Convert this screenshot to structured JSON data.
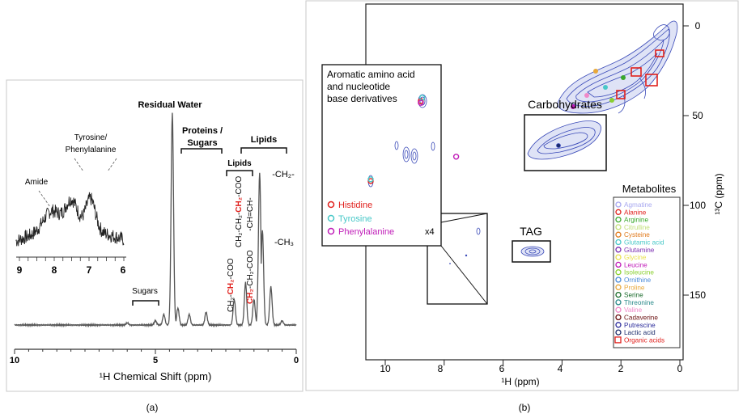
{
  "figure": {
    "panel_a_label": "(a)",
    "panel_b_label": "(b)"
  },
  "panel_a": {
    "xlabel": "¹H Chemical Shift (ppm)",
    "xticks": [
      "10",
      "5",
      "0"
    ],
    "inset_xticks": [
      "9",
      "8",
      "7",
      "6"
    ],
    "annotations": {
      "residual_water": "Residual Water",
      "proteins": "Proteins /",
      "sugars_top": "Sugars",
      "lipids_top": "Lipids",
      "lipids_small": "Lipids",
      "tyrosine": "Tyrosine/",
      "phenylalanine": "Phenylalanine",
      "amide": "Amide",
      "sugars_bottom": "Sugars",
      "ch2": "-CH₂-",
      "ch3": "-CH₃",
      "ch_vinyl": "-CH=CH-",
      "coo_1_black": "CH₂-",
      "coo_1_red": "CH₂",
      "coo_1_end": "-COO",
      "coo_2_black_a": "CH₂-CH₂-",
      "coo_2_red": "CH₂",
      "coo_2_end": "-COO",
      "coo_3_red": "CH₂",
      "coo_3_end": "-CH₂-COO"
    }
  },
  "panel_b": {
    "xlabel": "¹H (ppm)",
    "ylabel": "¹³C (ppm)",
    "xticks": [
      "10",
      "8",
      "6",
      "4",
      "2",
      "0"
    ],
    "yticks": [
      "0",
      "50",
      "100",
      "150"
    ],
    "inset_title": [
      "Aromatic amino acid",
      "and nucleotide",
      "base derivatives"
    ],
    "inset_legend": [
      "Histidine",
      "Tyrosine",
      "Phenylalanine"
    ],
    "inset_scale": "x4",
    "carbohydrates": "Carbohydrates",
    "tag": "TAG",
    "metabolites_title": "Metabolites",
    "metabolites": [
      {
        "name": "Agmatine",
        "color": "#a8a8f0"
      },
      {
        "name": "Alanine",
        "color": "#e0201c"
      },
      {
        "name": "Arginine",
        "color": "#3aa82c"
      },
      {
        "name": "Citrulline",
        "color": "#c2e07a"
      },
      {
        "name": "Cysteine",
        "color": "#e07a1c"
      },
      {
        "name": "Glutamic acid",
        "color": "#48c8c8"
      },
      {
        "name": "Glutamine",
        "color": "#7a2cb0"
      },
      {
        "name": "Glycine",
        "color": "#e8e04a"
      },
      {
        "name": "Leucine",
        "color": "#c01cb8"
      },
      {
        "name": "Isoleucine",
        "color": "#8ad030"
      },
      {
        "name": "Ornithine",
        "color": "#4a8ad8"
      },
      {
        "name": "Proline",
        "color": "#e8a83a"
      },
      {
        "name": "Serine",
        "color": "#1a6a2a"
      },
      {
        "name": "Threonine",
        "color": "#2a8a8a"
      },
      {
        "name": "Valine",
        "color": "#f088c8"
      },
      {
        "name": "Cadaverine",
        "color": "#6a1010"
      },
      {
        "name": "Putrescine",
        "color": "#2a2a9a"
      },
      {
        "name": "Lactic acid",
        "color": "#1a2a6a"
      },
      {
        "name": "Organic acids",
        "color": "#e0201c"
      }
    ]
  },
  "chart_data": [
    {
      "type": "line",
      "title": "",
      "xlabel": "¹H Chemical Shift (ppm)",
      "ylabel": "",
      "xlim": [
        10,
        0
      ],
      "x": [
        10,
        6,
        5,
        4.7,
        4.4,
        4.2,
        3.8,
        3.2,
        2.2,
        1.8,
        1.5,
        1.3,
        1.2,
        0.9,
        0.5,
        0
      ],
      "series": [
        {
          "values": [
            0.0,
            0.01,
            0.02,
            0.05,
            1.0,
            0.08,
            0.05,
            0.06,
            0.12,
            0.2,
            0.12,
            0.72,
            0.45,
            0.18,
            0.02,
            0.0
          ]
        }
      ]
    },
    {
      "type": "scatter",
      "title": "",
      "xlabel": "¹H (ppm)",
      "ylabel": "¹³C (ppm)",
      "xlim": [
        11,
        0
      ],
      "ylim": [
        185,
        -10
      ],
      "series": [
        {
          "name": "Histidine",
          "color": "#e0201c",
          "x": [
            8.6,
            10.3
          ],
          "y": [
            42,
            88
          ]
        },
        {
          "name": "Tyrosine",
          "color": "#48c8c8",
          "x": [
            8.55,
            10.3
          ],
          "y": [
            40,
            87
          ]
        },
        {
          "name": "Phenylalanine",
          "color": "#c01cb8",
          "x": [
            8.6,
            7.4
          ],
          "y": [
            43,
            74
          ]
        }
      ]
    }
  ]
}
